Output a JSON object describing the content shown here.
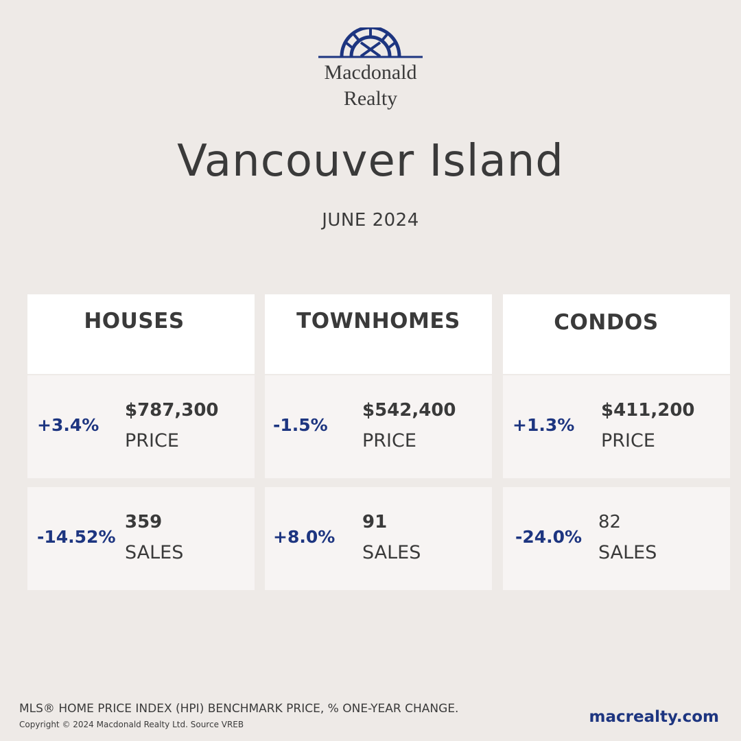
{
  "brand": {
    "name_line1": "Macdonald",
    "name_line2": "Realty",
    "accent_color": "#1d3580",
    "logo_icon": "sunburst-arch-logo"
  },
  "title": "Vancouver Island",
  "period": "JUNE 2024",
  "categories": [
    {
      "name": "HOUSES",
      "price": {
        "change": "+3.4%",
        "value": "$787,300",
        "label": "PRICE"
      },
      "sales": {
        "change": "-14.52%",
        "value": "359",
        "label": "SALES"
      }
    },
    {
      "name": "TOWNHOMES",
      "price": {
        "change": "-1.5%",
        "value": "$542,400",
        "label": "PRICE"
      },
      "sales": {
        "change": "+8.0%",
        "value": "91",
        "label": "SALES"
      }
    },
    {
      "name": "CONDOS",
      "price": {
        "change": "+1.3%",
        "value": "$411,200",
        "label": "PRICE"
      },
      "sales": {
        "change": "-24.0%",
        "value": "82",
        "label": "SALES"
      }
    }
  ],
  "footer": {
    "note": "MLS® HOME PRICE INDEX (HPI) BENCHMARK PRICE, % ONE-YEAR CHANGE.",
    "copyright": "Copyright © 2024 Macdonald Realty Ltd. Source VREB",
    "website": "macrealty.com"
  }
}
